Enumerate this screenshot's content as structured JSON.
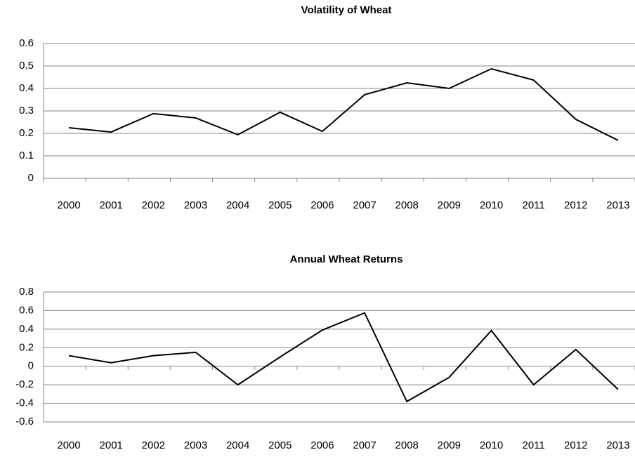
{
  "chart_data": [
    {
      "type": "line",
      "title": "Volatility of Wheat",
      "categories": [
        "2000",
        "2001",
        "2002",
        "2003",
        "2004",
        "2005",
        "2006",
        "2007",
        "2008",
        "2009",
        "2010",
        "2011",
        "2012",
        "2013"
      ],
      "series": [
        {
          "color": "#000000",
          "values": [
            0.225,
            0.206,
            0.288,
            0.269,
            0.194,
            0.294,
            0.209,
            0.372,
            0.425,
            0.4,
            0.4875,
            0.4375,
            0.2625,
            0.169
          ]
        }
      ],
      "ylim": [
        0,
        0.6
      ],
      "yticks": [
        0,
        0.1,
        0.2,
        0.3,
        0.4,
        0.5,
        0.6
      ],
      "grid": true
    },
    {
      "type": "line",
      "title": "Annual Wheat Returns",
      "categories": [
        "2000",
        "2001",
        "2002",
        "2003",
        "2004",
        "2005",
        "2006",
        "2007",
        "2008",
        "2009",
        "2010",
        "2011",
        "2012",
        "2013"
      ],
      "series": [
        {
          "color": "#000000",
          "values": [
            0.114,
            0.038,
            0.114,
            0.15,
            -0.2,
            0.1,
            0.39,
            0.575,
            -0.38,
            -0.12,
            0.385,
            -0.2,
            0.18,
            -0.25
          ]
        }
      ],
      "ylim": [
        -0.6,
        0.8
      ],
      "yticks": [
        -0.6,
        -0.4,
        -0.2,
        0,
        0.2,
        0.4,
        0.6,
        0.8
      ],
      "grid": true
    }
  ]
}
